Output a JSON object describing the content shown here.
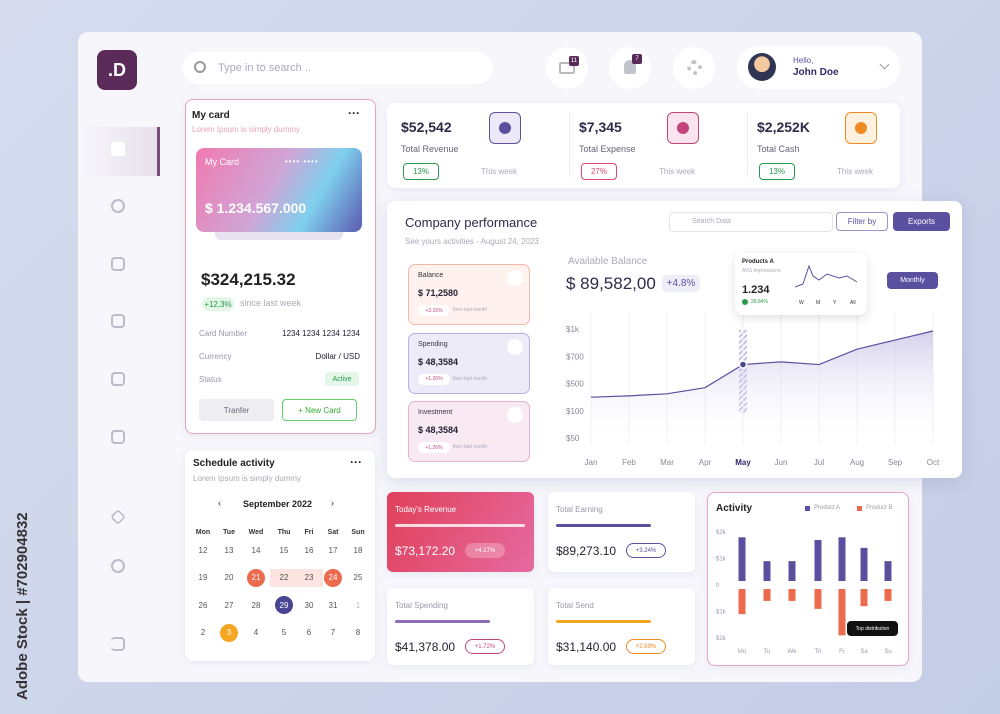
{
  "brand": ".D",
  "search_placeholder": "Type in to search ..",
  "badges": {
    "messages": "11",
    "alerts": "7"
  },
  "user": {
    "greeting": "Hello,",
    "name": "John Doe"
  },
  "my_card": {
    "title": "My card",
    "subtitle": "Lorem Ipsum is simply dummy",
    "card_label": "My Card",
    "card_amount": "$ 1.234.567.000",
    "balance": "$324,215.32",
    "change": "+12,3%",
    "change_note": "since last week",
    "details": [
      [
        "Card Number",
        "1234 1234 1234 1234"
      ],
      [
        "Currency",
        "Dollar / USD"
      ],
      [
        "Status",
        "Active"
      ]
    ],
    "buttons": [
      "Tranfer",
      "+ New Card"
    ]
  },
  "stats": [
    {
      "value": "$52,542",
      "label": "Total Revenue",
      "change": "13%",
      "period": "This week"
    },
    {
      "value": "$7,345",
      "label": "Total Expense",
      "change": "27%",
      "period": "This week"
    },
    {
      "value": "$2,252K",
      "label": "Total Cash",
      "change": "13%",
      "period": "This week"
    }
  ],
  "performance": {
    "title": "Company performance",
    "subtitle": "See yours activities - August 24, 2023",
    "search": "Search Data",
    "filter": "Filter by",
    "export": "Exports",
    "tiles": [
      {
        "label": "Balance",
        "value": "$ 71,2580",
        "change": "+2.16%",
        "note": "then last month"
      },
      {
        "label": "Spending",
        "value": "$ 48,3584",
        "change": "+1.26%",
        "note": "then last month"
      },
      {
        "label": "Investment",
        "value": "$ 48,3584",
        "change": "+1.26%",
        "note": "then last month"
      }
    ],
    "available_label": "Available Balance",
    "available": "$ 89,582,00",
    "available_change": "+4.8%",
    "popup": {
      "title": "Products A",
      "subtitle": "AVG Impressions",
      "value": "1.234",
      "change": "26.84%",
      "ranges": [
        "W",
        "M",
        "Y",
        "All"
      ]
    },
    "period": "Monthly",
    "chart": {
      "type": "line",
      "categories": [
        "Jan",
        "Feb",
        "Mar",
        "Apr",
        "May",
        "Jun",
        "Jul",
        "Aug",
        "Sep",
        "Oct"
      ],
      "values": [
        300,
        320,
        350,
        440,
        640,
        660,
        640,
        780,
        880,
        980
      ],
      "ylim": [
        50,
        1000
      ],
      "yticks": [
        {
          "value": 50,
          "label": "$50"
        },
        {
          "value": 100,
          "label": "$100"
        },
        {
          "value": 500,
          "label": "$500"
        },
        {
          "value": 700,
          "label": "$700"
        },
        {
          "value": 1000,
          "label": "$1k"
        }
      ],
      "color": "#5b50a0"
    }
  },
  "schedule": {
    "title": "Schedule activity",
    "subtitle": "Lorem Ipsum is simply dummy",
    "month": "September 2022",
    "weekdays": [
      "Mon",
      "Tue",
      "Wed",
      "Thu",
      "Fri",
      "Sat",
      "Sun"
    ],
    "weeks": [
      [
        "12",
        "13",
        "14",
        "15",
        "16",
        "17",
        "18"
      ],
      [
        "19",
        "20",
        "21",
        "22",
        "23",
        "24",
        "25"
      ],
      [
        "26",
        "27",
        "28",
        "29",
        "30",
        "31",
        "1"
      ],
      [
        "2",
        "3",
        "4",
        "5",
        "6",
        "7",
        "8"
      ]
    ]
  },
  "tiles": [
    {
      "label": "Today's Revenue",
      "value": "$73,172.20",
      "change": "+4.17%"
    },
    {
      "label": "Total Earning",
      "value": "$89,273.10",
      "change": "+3.24%"
    },
    {
      "label": "Total Spending",
      "value": "$41,378.00",
      "change": "+1.72%"
    },
    {
      "label": "Total Send",
      "value": "$31,140.00",
      "change": "+2.59%"
    }
  ],
  "activity": {
    "type": "bar",
    "title": "Activity",
    "categories": [
      "Mo",
      "Tu",
      "We",
      "Th",
      "Fr",
      "Sa",
      "Su"
    ],
    "series": [
      {
        "name": "Product A",
        "color": "#5b50a0",
        "values": [
          1800,
          900,
          900,
          1700,
          1800,
          1400,
          900
        ]
      },
      {
        "name": "Product B",
        "color": "#ec6a4e",
        "values": [
          -1100,
          -600,
          -600,
          -900,
          -1900,
          -800,
          -600
        ]
      }
    ],
    "ylim": [
      -2000,
      2000
    ],
    "yticks": [
      {
        "value": 2000,
        "label": "$2k"
      },
      {
        "value": 1000,
        "label": "$1k"
      },
      0,
      {
        "value": -1000,
        "label": "$1k"
      },
      {
        "value": -2000,
        "label": "$2k"
      }
    ],
    "annotation": "Top distribution"
  },
  "watermark": "Adobe Stock | #702904832"
}
